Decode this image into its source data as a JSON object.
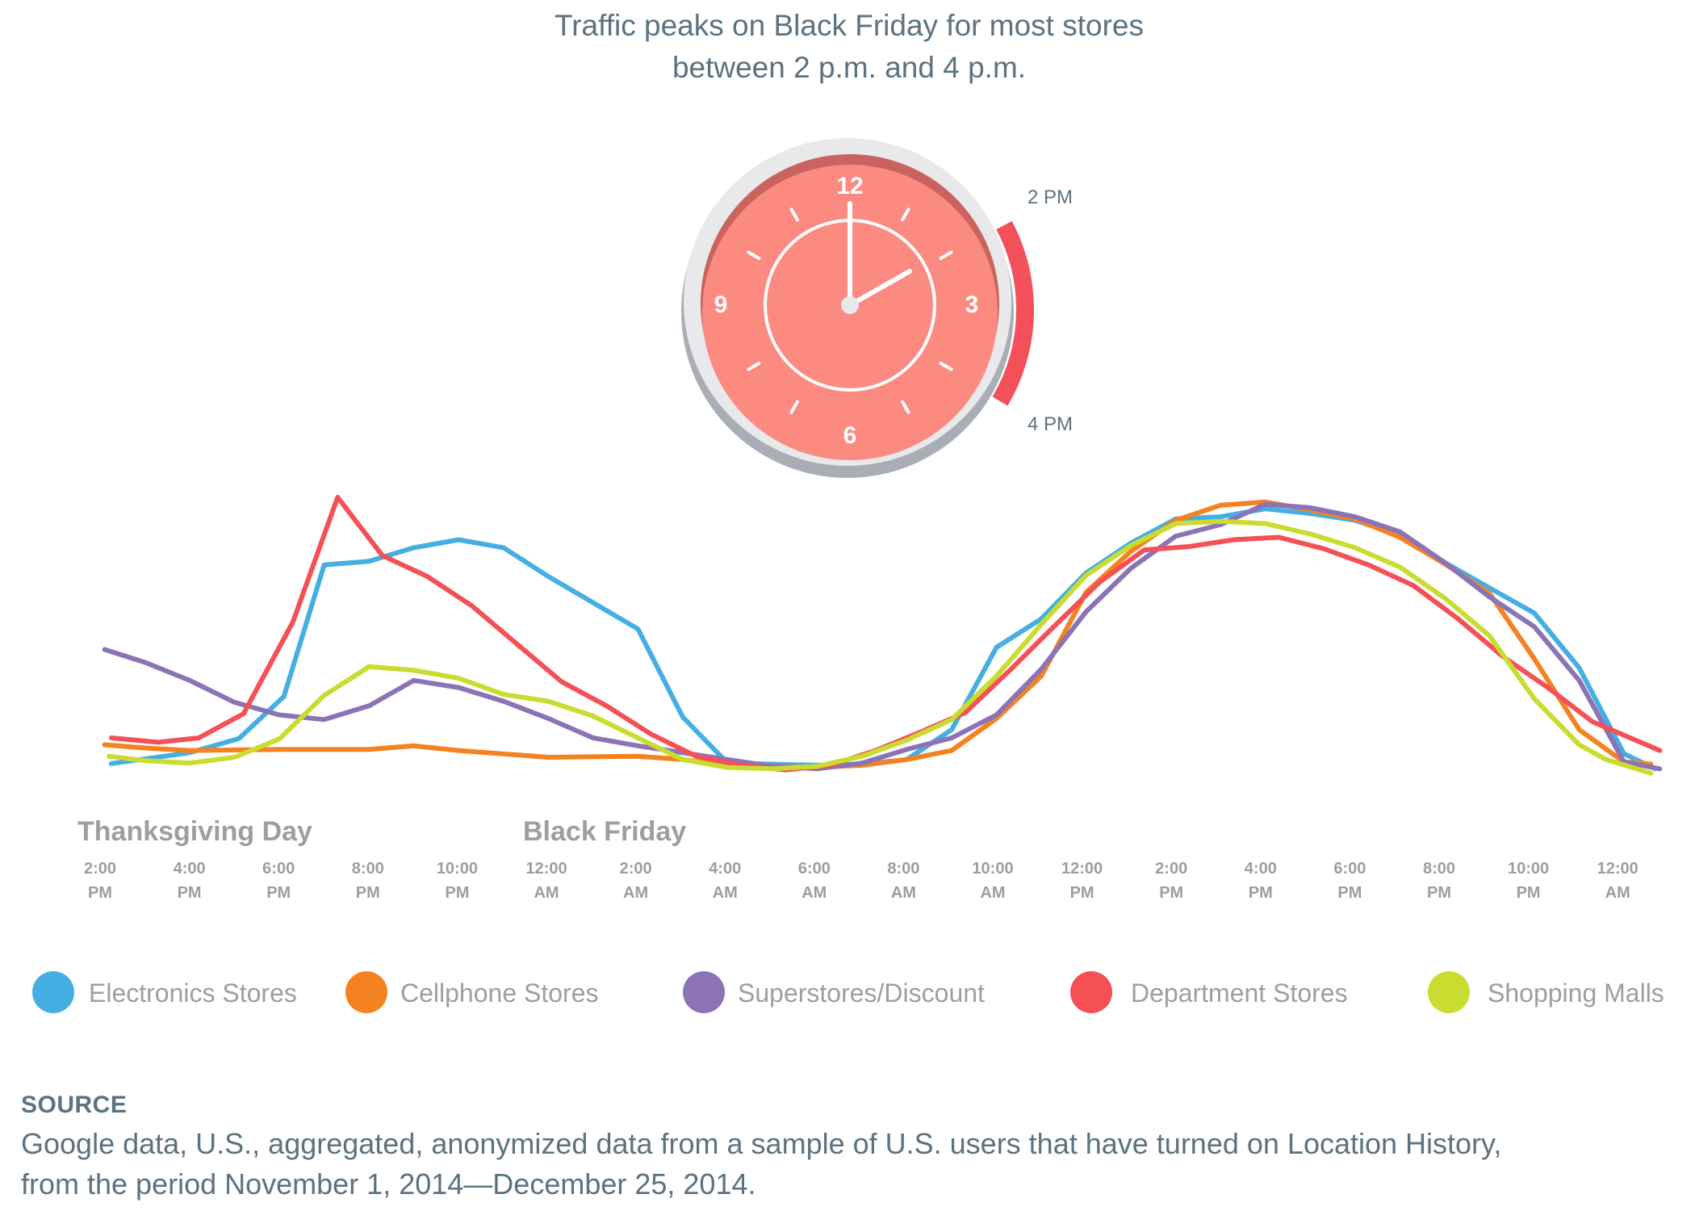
{
  "header": {
    "title_line1": "Traffic peaks on Black Friday for most stores",
    "title_line2": "between 2 p.m. and 4 p.m."
  },
  "clock": {
    "numerals": {
      "n12": "12",
      "n3": "3",
      "n6": "6",
      "n9": "9"
    },
    "range_start_label": "2 PM",
    "range_end_label": "4 PM",
    "time_shown": "2:00"
  },
  "sections": {
    "day1": "Thanksgiving Day",
    "day2": "Black Friday"
  },
  "chart_data": {
    "type": "line",
    "x_ticks": [
      [
        "2:00",
        "PM"
      ],
      [
        "4:00",
        "PM"
      ],
      [
        "6:00",
        "PM"
      ],
      [
        "8:00",
        "PM"
      ],
      [
        "10:00",
        "PM"
      ],
      [
        "12:00",
        "AM"
      ],
      [
        "2:00",
        "AM"
      ],
      [
        "4:00",
        "AM"
      ],
      [
        "6:00",
        "AM"
      ],
      [
        "8:00",
        "AM"
      ],
      [
        "10:00",
        "AM"
      ],
      [
        "12:00",
        "PM"
      ],
      [
        "2:00",
        "PM"
      ],
      [
        "4:00",
        "PM"
      ],
      [
        "6:00",
        "PM"
      ],
      [
        "8:00",
        "PM"
      ],
      [
        "10:00",
        "PM"
      ],
      [
        "12:00",
        "AM"
      ]
    ],
    "x_range": [
      0,
      34
    ],
    "y_range": [
      0,
      100
    ],
    "grid": false,
    "legend_position": "bottom",
    "series": [
      {
        "name": "Electronics Stores",
        "color": "#45aee3",
        "points": [
          [
            0.25,
            2.7
          ],
          [
            2,
            6.7
          ],
          [
            3.1,
            11.9
          ],
          [
            4.1,
            27.2
          ],
          [
            5,
            75.3
          ],
          [
            6,
            76.6
          ],
          [
            7,
            81.6
          ],
          [
            8,
            84.5
          ],
          [
            9,
            81.6
          ],
          [
            10,
            71.1
          ],
          [
            11,
            61.5
          ],
          [
            12,
            51.9
          ],
          [
            13,
            19.7
          ],
          [
            14,
            2.9
          ],
          [
            16,
            2.1
          ],
          [
            17,
            2.5
          ],
          [
            18,
            4.2
          ],
          [
            19,
            15.1
          ],
          [
            20,
            45.2
          ],
          [
            21,
            55.6
          ],
          [
            22,
            72.4
          ],
          [
            23,
            83.3
          ],
          [
            24,
            92.1
          ],
          [
            25,
            92.9
          ],
          [
            26,
            95.8
          ],
          [
            27,
            94.1
          ],
          [
            28,
            91.6
          ],
          [
            29,
            86.2
          ],
          [
            30,
            76.2
          ],
          [
            31,
            66.9
          ],
          [
            32,
            57.7
          ],
          [
            33,
            37.7
          ],
          [
            34,
            6.3
          ],
          [
            34.7,
            0.8
          ]
        ]
      },
      {
        "name": "Cellphone Stores",
        "color": "#f58220",
        "points": [
          [
            0.1,
            9.6
          ],
          [
            1,
            8.4
          ],
          [
            2,
            7.5
          ],
          [
            4,
            7.9
          ],
          [
            6,
            7.9
          ],
          [
            7,
            9.2
          ],
          [
            8,
            7.5
          ],
          [
            10,
            5.0
          ],
          [
            12,
            5.4
          ],
          [
            13,
            4.2
          ],
          [
            14,
            2.1
          ],
          [
            16,
            1.3
          ],
          [
            17,
            2.1
          ],
          [
            18,
            4.2
          ],
          [
            19,
            7.5
          ],
          [
            20,
            19.2
          ],
          [
            21,
            34.7
          ],
          [
            22,
            65.3
          ],
          [
            23,
            80.3
          ],
          [
            24,
            91.6
          ],
          [
            25,
            97.1
          ],
          [
            26,
            98.3
          ],
          [
            27,
            95.4
          ],
          [
            28,
            92.1
          ],
          [
            29,
            85.4
          ],
          [
            30,
            75.7
          ],
          [
            31,
            64.9
          ],
          [
            32,
            41.0
          ],
          [
            33,
            15.1
          ],
          [
            34,
            3.3
          ],
          [
            34.6,
            2.5
          ]
        ]
      },
      {
        "name": "Superstores/Discount",
        "color": "#8c73b6",
        "points": [
          [
            0.1,
            44.4
          ],
          [
            1,
            39.7
          ],
          [
            2,
            33.1
          ],
          [
            3,
            25.1
          ],
          [
            4,
            20.5
          ],
          [
            5,
            18.8
          ],
          [
            6,
            23.8
          ],
          [
            7,
            33.1
          ],
          [
            8,
            30.5
          ],
          [
            9,
            25.5
          ],
          [
            10,
            19.2
          ],
          [
            11,
            12.1
          ],
          [
            12,
            9.2
          ],
          [
            14,
            4.2
          ],
          [
            15,
            1.7
          ],
          [
            16,
            0.8
          ],
          [
            17,
            2.9
          ],
          [
            18,
            7.9
          ],
          [
            19,
            12.1
          ],
          [
            20,
            20.5
          ],
          [
            21,
            37.2
          ],
          [
            22,
            58.2
          ],
          [
            23,
            74.1
          ],
          [
            24,
            85.8
          ],
          [
            25,
            90.0
          ],
          [
            26,
            97.5
          ],
          [
            27,
            96.2
          ],
          [
            28,
            92.9
          ],
          [
            29,
            87.4
          ],
          [
            30,
            76.2
          ],
          [
            31,
            63.6
          ],
          [
            32,
            52.7
          ],
          [
            33,
            33.1
          ],
          [
            34,
            3.3
          ],
          [
            34.8,
            0.8
          ]
        ]
      },
      {
        "name": "Department Stores",
        "color": "#f45055",
        "points": [
          [
            0.25,
            12.1
          ],
          [
            1.3,
            10.5
          ],
          [
            2.2,
            12.1
          ],
          [
            3.2,
            20.9
          ],
          [
            4.3,
            54.4
          ],
          [
            5.3,
            100
          ],
          [
            6.3,
            78.7
          ],
          [
            7.3,
            71.1
          ],
          [
            8.3,
            60.3
          ],
          [
            9.3,
            46.4
          ],
          [
            10.3,
            32.6
          ],
          [
            11.3,
            23.8
          ],
          [
            12.3,
            13.4
          ],
          [
            13.3,
            5.4
          ],
          [
            14.3,
            2.1
          ],
          [
            15.3,
            0.4
          ],
          [
            16.3,
            2.1
          ],
          [
            17.3,
            7.5
          ],
          [
            18.3,
            14.2
          ],
          [
            19.3,
            21.3
          ],
          [
            20.3,
            36.8
          ],
          [
            21.3,
            53.1
          ],
          [
            22.3,
            69.0
          ],
          [
            23.3,
            80.8
          ],
          [
            24.3,
            82.0
          ],
          [
            25.3,
            84.5
          ],
          [
            26.3,
            85.4
          ],
          [
            27.3,
            81.2
          ],
          [
            28.3,
            75.3
          ],
          [
            29.3,
            67.8
          ],
          [
            30.3,
            55.6
          ],
          [
            31.3,
            41.8
          ],
          [
            32.3,
            30.5
          ],
          [
            33.3,
            18.0
          ],
          [
            34.8,
            7.5
          ]
        ]
      },
      {
        "name": "Shopping Malls",
        "color": "#c9dc2f",
        "points": [
          [
            0.2,
            5.4
          ],
          [
            1,
            3.8
          ],
          [
            2,
            2.9
          ],
          [
            3,
            5.0
          ],
          [
            4,
            11.7
          ],
          [
            5,
            27.6
          ],
          [
            6,
            38.1
          ],
          [
            7,
            36.8
          ],
          [
            8,
            33.9
          ],
          [
            9,
            28.0
          ],
          [
            10,
            25.5
          ],
          [
            11,
            20.1
          ],
          [
            12,
            12.1
          ],
          [
            13,
            4.2
          ],
          [
            14,
            1.3
          ],
          [
            15,
            0.8
          ],
          [
            16,
            1.7
          ],
          [
            17,
            5.4
          ],
          [
            18,
            11.3
          ],
          [
            19,
            18.8
          ],
          [
            20,
            34.7
          ],
          [
            21,
            53.6
          ],
          [
            22,
            71.5
          ],
          [
            23,
            82.4
          ],
          [
            24,
            90.4
          ],
          [
            25,
            91.2
          ],
          [
            26,
            90.4
          ],
          [
            27,
            86.6
          ],
          [
            28,
            81.6
          ],
          [
            29,
            74.5
          ],
          [
            30,
            63.2
          ],
          [
            31,
            49.4
          ],
          [
            32,
            26.4
          ],
          [
            33,
            9.6
          ],
          [
            33.6,
            4.2
          ],
          [
            34.6,
            -0.8
          ]
        ]
      }
    ]
  },
  "source": {
    "heading": "SOURCE",
    "line1": "Google data, U.S., aggregated, anonymized data from a sample of U.S. users that have turned on Location History,",
    "line2": "from the period November 1, 2014—December 25, 2014."
  }
}
